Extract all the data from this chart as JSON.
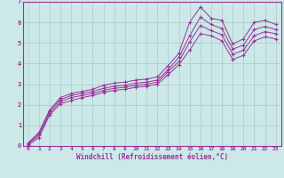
{
  "xlabel": "Windchill (Refroidissement éolien,°C)",
  "bg_color": "#cce8e8",
  "line_color": "#993399",
  "grid_color": "#aacccc",
  "xlim": [
    -0.5,
    23.5
  ],
  "ylim": [
    0,
    7
  ],
  "xticks": [
    0,
    1,
    2,
    3,
    4,
    5,
    6,
    7,
    8,
    9,
    10,
    11,
    12,
    13,
    14,
    15,
    16,
    17,
    18,
    19,
    20,
    21,
    22,
    23
  ],
  "yticks": [
    0,
    1,
    2,
    3,
    4,
    5,
    6,
    7
  ],
  "lines": [
    {
      "x": [
        0,
        1,
        2,
        3,
        4,
        5,
        6,
        7,
        8,
        9,
        10,
        11,
        12,
        13,
        14,
        15,
        16,
        17,
        18,
        19,
        20,
        21,
        22,
        23
      ],
      "y": [
        0.15,
        0.65,
        1.75,
        2.35,
        2.55,
        2.65,
        2.75,
        2.95,
        3.05,
        3.1,
        3.2,
        3.25,
        3.35,
        3.9,
        4.5,
        6.0,
        6.75,
        6.2,
        6.1,
        4.95,
        5.2,
        6.0,
        6.1,
        5.9
      ]
    },
    {
      "x": [
        0,
        1,
        2,
        3,
        4,
        5,
        6,
        7,
        8,
        9,
        10,
        11,
        12,
        13,
        14,
        15,
        16,
        17,
        18,
        19,
        20,
        21,
        22,
        23
      ],
      "y": [
        0.12,
        0.6,
        1.7,
        2.25,
        2.45,
        2.55,
        2.65,
        2.8,
        2.9,
        2.95,
        3.05,
        3.1,
        3.2,
        3.7,
        4.3,
        5.35,
        6.25,
        5.9,
        5.7,
        4.7,
        4.9,
        5.65,
        5.8,
        5.65
      ]
    },
    {
      "x": [
        0,
        1,
        2,
        3,
        4,
        5,
        6,
        7,
        8,
        9,
        10,
        11,
        12,
        13,
        14,
        15,
        16,
        17,
        18,
        19,
        20,
        21,
        22,
        23
      ],
      "y": [
        0.1,
        0.5,
        1.6,
        2.15,
        2.35,
        2.45,
        2.55,
        2.7,
        2.8,
        2.85,
        2.95,
        3.0,
        3.1,
        3.6,
        4.1,
        5.05,
        5.85,
        5.6,
        5.4,
        4.45,
        4.65,
        5.35,
        5.55,
        5.45
      ]
    },
    {
      "x": [
        0,
        1,
        2,
        3,
        4,
        5,
        6,
        7,
        8,
        9,
        10,
        11,
        12,
        13,
        14,
        15,
        16,
        17,
        18,
        19,
        20,
        21,
        22,
        23
      ],
      "y": [
        0.05,
        0.4,
        1.5,
        2.05,
        2.2,
        2.35,
        2.45,
        2.6,
        2.7,
        2.75,
        2.85,
        2.9,
        3.0,
        3.45,
        3.95,
        4.65,
        5.45,
        5.35,
        5.1,
        4.2,
        4.4,
        5.1,
        5.3,
        5.2
      ]
    }
  ]
}
